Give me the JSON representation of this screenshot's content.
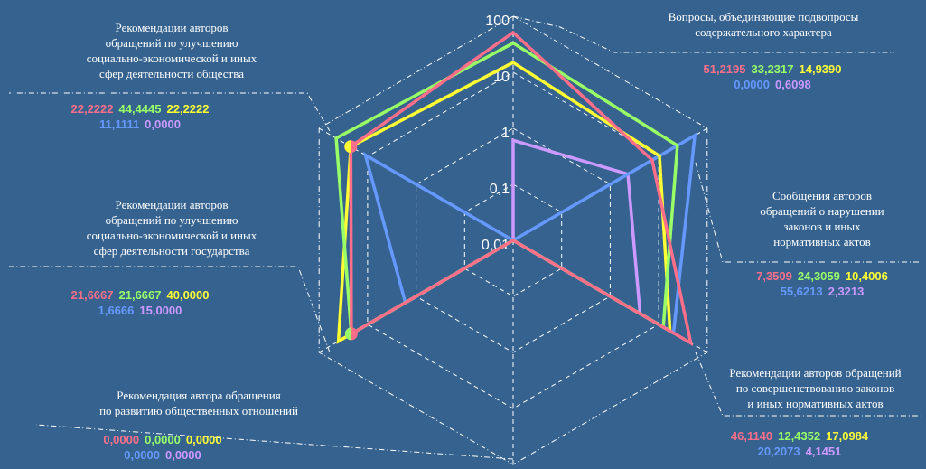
{
  "chart_data": {
    "type": "radar",
    "scale": "log",
    "rlim": [
      0.01,
      100
    ],
    "tick_labels": [
      "100",
      "10",
      "1",
      "0,1",
      "0,01"
    ],
    "categories": [
      "Вопросы, объединяющие подвопросы содержательного характера",
      "Сообщения авторов обращений о нарушении законов и иных нормативных актов",
      "Рекомендации авторов обращений по совершенствованию законов и иных нормативных актов",
      "Рекомендация автора обращения по развитию общественных отношений",
      "Рекомендации авторов обращений по улучшению социально-экономической и иных сфер деятельности государства",
      "Рекомендации авторов обращений по улучшению социально-экономической и иных сфер деятельности общества"
    ],
    "category_lines": [
      [
        "Вопросы, объединяющие подвопросы",
        "содержательного характера"
      ],
      [
        "Сообщения авторов",
        "обращений о нарушении",
        "законов и иных",
        "нормативных актов"
      ],
      [
        "Рекомендации авторов обращений",
        "по совершенствованию законов",
        "и иных нормативных актов"
      ],
      [
        "Рекомендация автора обращения",
        "по развитию общественных отношений"
      ],
      [
        "Рекомендации авторов",
        "обращений по улучшению",
        "социально-экономической и иных",
        "сфер деятельности  государства"
      ],
      [
        "Рекомендации авторов",
        "обращений по улучшению",
        "социально-экономической и иных",
        "сфер деятельности  общества"
      ]
    ],
    "series": [
      {
        "color": "#ff6f8a",
        "values": [
          51.2195,
          7.3509,
          46.114,
          0.0,
          21.6667,
          22.2222
        ],
        "value_labels": [
          "51,2195",
          "7,3509",
          "46,1140",
          "0,0000",
          "21,6667",
          "22,2222"
        ]
      },
      {
        "color": "#99ff66",
        "values": [
          33.2317,
          24.3059,
          12.4352,
          0.0,
          21.6667,
          44.4445
        ],
        "value_labels": [
          "33,2317",
          "24,3059",
          "12,4352",
          "0,0000",
          "21,6667",
          "44,4445"
        ]
      },
      {
        "color": "#ffff33",
        "values": [
          14.939,
          10.4006,
          17.0984,
          0.0,
          40.0,
          22.2222
        ],
        "value_labels": [
          "14,9390",
          "10,4006",
          "17,0984",
          "0,0000",
          "40,0000",
          "22,2222"
        ]
      },
      {
        "color": "#6699ff",
        "values": [
          0.0,
          55.6213,
          20.2073,
          0.0,
          1.6666,
          11.1111
        ],
        "value_labels": [
          "0,0000",
          "55,6213",
          "20,2073",
          "0,0000",
          "1,6666",
          "11,1111"
        ]
      },
      {
        "color": "#cc99ff",
        "values": [
          0.6098,
          2.3213,
          4.1451,
          0.0,
          15.0,
          0.0
        ],
        "value_labels": [
          "0,6098",
          "2,3213",
          "4,1451",
          "0,0000",
          "15,0000",
          "0,0000"
        ]
      }
    ],
    "grid": true
  }
}
